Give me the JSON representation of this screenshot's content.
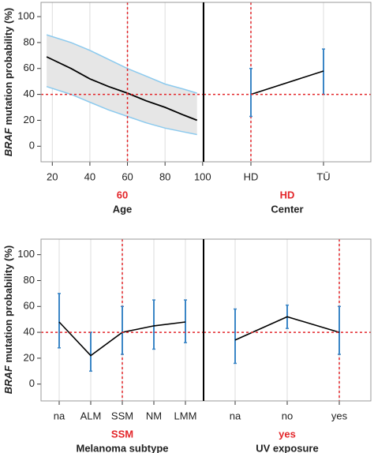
{
  "y_label": {
    "italic": "BRAF",
    "text": "mutation probability (%)"
  },
  "chart_data": [
    {
      "type": "band_line",
      "x": [
        17,
        30,
        40,
        50,
        60,
        70,
        80,
        90,
        97
      ],
      "values": [
        69,
        60,
        52,
        46,
        41,
        35,
        30,
        24,
        20
      ],
      "lower": [
        46,
        40,
        34,
        28,
        23,
        18,
        14,
        11,
        9
      ],
      "upper": [
        86,
        80,
        74,
        67,
        60,
        54,
        48,
        44,
        41
      ],
      "xlim": [
        14,
        100.5
      ],
      "xticks": [
        20,
        40,
        60,
        80,
        100
      ],
      "ylim": [
        -12,
        111
      ],
      "yticks": [
        0,
        20,
        40,
        60,
        80,
        100
      ],
      "ref_x": 60,
      "ref_y": 40,
      "xlabel": "Age",
      "grid": true,
      "line_color": "#000000",
      "band_color": "#e6e6e6",
      "band_edge": "#8ccaee",
      "ref_color": "#e3262a"
    },
    {
      "type": "errorbar_line",
      "categories": [
        "HD",
        "TŪ"
      ],
      "values": [
        40,
        58
      ],
      "lower": [
        23,
        40
      ],
      "upper": [
        60,
        75
      ],
      "selected": "HD",
      "ref_y": 40,
      "xlabel": "Center",
      "ylim": [
        -12,
        111
      ],
      "grid": true,
      "line_color": "#000000",
      "bar_color": "#3b86c6",
      "ref_color": "#e3262a"
    },
    {
      "type": "errorbar_line",
      "categories": [
        "na",
        "ALM",
        "SSM",
        "NM",
        "LMM"
      ],
      "values": [
        48,
        22,
        40,
        45,
        48
      ],
      "lower": [
        28,
        10,
        23,
        27,
        32
      ],
      "upper": [
        70,
        40,
        60,
        65,
        65
      ],
      "selected": "SSM",
      "ref_y": 40,
      "xlabel": "Melanoma subtype",
      "ylim": [
        -13,
        112
      ],
      "yticks": [
        0,
        20,
        40,
        60,
        80,
        100
      ],
      "grid": true,
      "line_color": "#000000",
      "bar_color": "#3b86c6",
      "ref_color": "#e3262a"
    },
    {
      "type": "errorbar_line",
      "categories": [
        "na",
        "no",
        "yes"
      ],
      "values": [
        34,
        52,
        40
      ],
      "lower": [
        16,
        43,
        23
      ],
      "upper": [
        58,
        61,
        60
      ],
      "selected": "yes",
      "ref_y": 40,
      "xlabel": "UV exposure",
      "ylim": [
        -13,
        112
      ],
      "grid": true,
      "line_color": "#000000",
      "bar_color": "#3b86c6",
      "ref_color": "#e3262a"
    }
  ]
}
